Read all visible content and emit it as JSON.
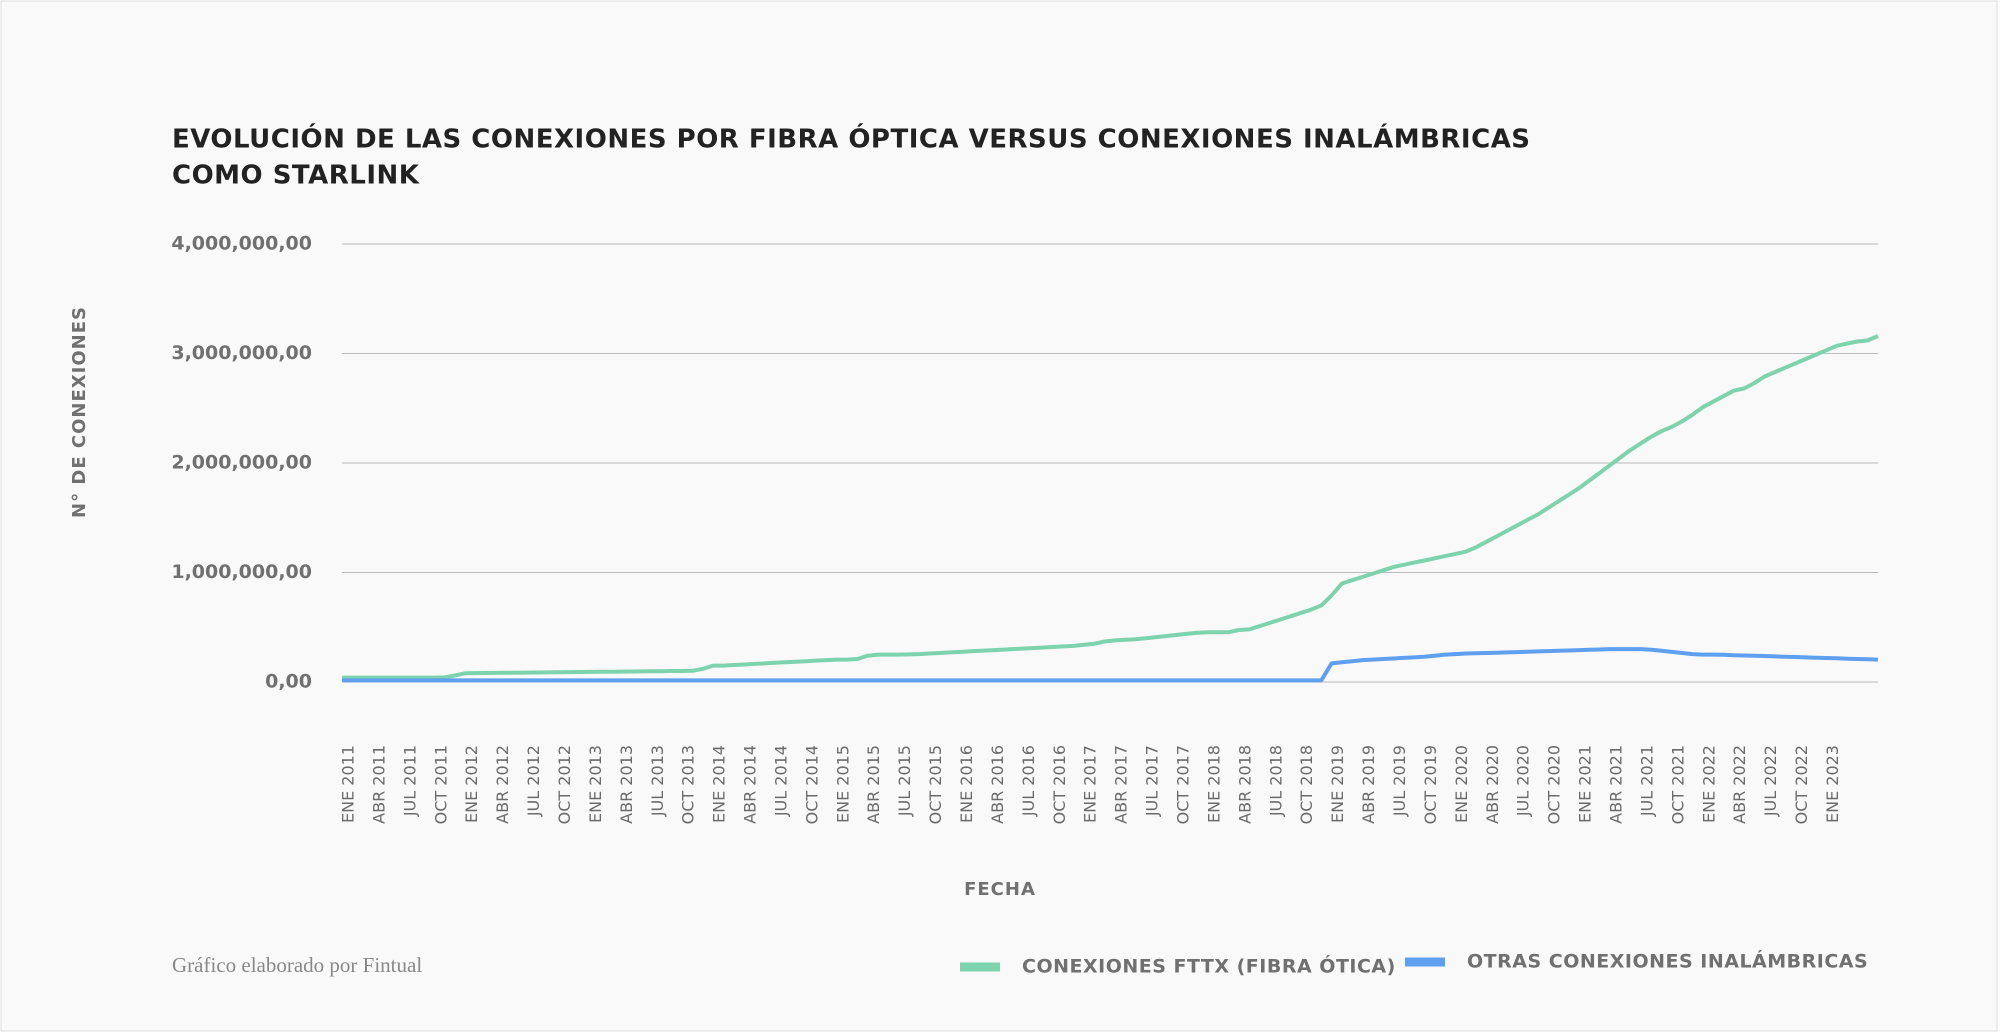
{
  "chart_data": {
    "type": "line",
    "title": [
      "EVOLUCIÓN DE LAS CONEXIONES POR FIBRA ÓPTICA VERSUS CONEXIONES INALÁMBRICAS",
      "COMO STARLINK"
    ],
    "y_label": "N° DE CONEXIONES",
    "x_label": "FECHA",
    "footnote": "Gráfico elaborado por Fintual",
    "legend": "bottom-right",
    "grid": true,
    "ylim": [
      0,
      4000000
    ],
    "yticks": [
      {
        "value": 0,
        "label": "0,00"
      },
      {
        "value": 1000000,
        "label": "1,000,000,00"
      },
      {
        "value": 2000000,
        "label": "2,000,000,00"
      },
      {
        "value": 3000000,
        "label": "3,000,000,00"
      },
      {
        "value": 4000000,
        "label": "4,000,000,00"
      }
    ],
    "categories": [
      "ENE 2011",
      null,
      null,
      "ABR 2011",
      null,
      null,
      "JUL 2011",
      null,
      null,
      "OCT 2011",
      null,
      null,
      "ENE 2012",
      null,
      null,
      "ABR 2012",
      null,
      null,
      "JUL 2012",
      null,
      null,
      "OCT 2012",
      null,
      null,
      "ENE 2013",
      null,
      null,
      "ABR 2013",
      null,
      null,
      "JUL 2013",
      null,
      null,
      "OCT 2013",
      null,
      null,
      "ENE 2014",
      null,
      null,
      "ABR 2014",
      null,
      null,
      "JUL 2014",
      null,
      null,
      "OCT 2014",
      null,
      null,
      "ENE 2015",
      null,
      null,
      "ABR 2015",
      null,
      null,
      "JUL 2015",
      null,
      null,
      "OCT 2015",
      null,
      null,
      "ENE 2016",
      null,
      null,
      "ABR 2016",
      null,
      null,
      "JUL 2016",
      null,
      null,
      "OCT 2016",
      null,
      null,
      "ENE 2017",
      null,
      null,
      "ABR 2017",
      null,
      null,
      "JUL 2017",
      null,
      null,
      "OCT 2017",
      null,
      null,
      "ENE 2018",
      null,
      null,
      "ABR 2018",
      null,
      null,
      "JUL 2018",
      null,
      null,
      "OCT 2018",
      null,
      null,
      "ENE 2019",
      null,
      null,
      "ABR 2019",
      null,
      null,
      "JUL 2019",
      null,
      null,
      "OCT 2019",
      null,
      null,
      "ENE 2020",
      null,
      null,
      "ABR 2020",
      null,
      null,
      "JUL 2020",
      null,
      null,
      "OCT 2020",
      null,
      null,
      "ENE 2021",
      null,
      null,
      "ABR 2021",
      null,
      null,
      "JUL 2021",
      null,
      null,
      "OCT 2021",
      null,
      null,
      "ENE 2022",
      null,
      null,
      "ABR 2022",
      null,
      null,
      "JUL 2022",
      null,
      null,
      "OCT 2022",
      null,
      null,
      "ENE 2023",
      null,
      null,
      null,
      null,
      null
    ],
    "series": [
      {
        "name": "CONEXIONES FTTX (FIBRA ÓTICA)",
        "color": "#7dd3ae",
        "values": [
          40000,
          40000,
          40000,
          40000,
          40000,
          40000,
          40000,
          40000,
          40000,
          40000,
          42000,
          60000,
          80000,
          81000,
          82000,
          83000,
          84000,
          85000,
          86000,
          87000,
          88000,
          89000,
          90000,
          91000,
          92000,
          93000,
          94000,
          95000,
          96000,
          97000,
          98000,
          99000,
          100000,
          100000,
          102000,
          120000,
          150000,
          150000,
          155000,
          160000,
          165000,
          170000,
          175000,
          180000,
          185000,
          190000,
          195000,
          200000,
          205000,
          205000,
          210000,
          240000,
          250000,
          250000,
          250000,
          252000,
          255000,
          260000,
          265000,
          270000,
          275000,
          280000,
          285000,
          290000,
          295000,
          300000,
          305000,
          310000,
          315000,
          320000,
          325000,
          330000,
          340000,
          350000,
          370000,
          380000,
          385000,
          390000,
          400000,
          410000,
          420000,
          430000,
          440000,
          450000,
          455000,
          455000,
          455000,
          475000,
          480000,
          510000,
          540000,
          570000,
          600000,
          630000,
          660000,
          700000,
          790000,
          900000,
          930000,
          960000,
          990000,
          1020000,
          1050000,
          1070000,
          1090000,
          1110000,
          1130000,
          1150000,
          1170000,
          1190000,
          1230000,
          1280000,
          1330000,
          1380000,
          1430000,
          1480000,
          1530000,
          1590000,
          1650000,
          1710000,
          1770000,
          1840000,
          1910000,
          1980000,
          2050000,
          2120000,
          2180000,
          2240000,
          2290000,
          2330000,
          2380000,
          2440000,
          2510000,
          2560000,
          2610000,
          2660000,
          2680000,
          2730000,
          2790000,
          2830000,
          2870000,
          2910000,
          2950000,
          2990000,
          3030000,
          3070000,
          3090000,
          3110000,
          3120000,
          3160000
        ]
      },
      {
        "name": "OTRAS CONEXIONES INALÁMBRICAS",
        "color": "#5e9ff0",
        "values": [
          15000,
          15000,
          15000,
          15000,
          15000,
          15000,
          15000,
          15000,
          15000,
          15000,
          15000,
          15000,
          15000,
          15000,
          15000,
          15000,
          15000,
          15000,
          15000,
          15000,
          15000,
          15000,
          15000,
          15000,
          15000,
          15000,
          15000,
          15000,
          15000,
          15000,
          15000,
          15000,
          15000,
          15000,
          15000,
          15000,
          15000,
          15000,
          15000,
          15000,
          15000,
          15000,
          15000,
          15000,
          15000,
          15000,
          15000,
          15000,
          15000,
          15000,
          15000,
          15000,
          15000,
          15000,
          15000,
          15000,
          15000,
          15000,
          15000,
          15000,
          15000,
          15000,
          15000,
          15000,
          15000,
          15000,
          15000,
          15000,
          15000,
          15000,
          15000,
          15000,
          15000,
          15000,
          15000,
          15000,
          15000,
          15000,
          15000,
          15000,
          15000,
          15000,
          15000,
          15000,
          15000,
          15000,
          15000,
          15000,
          15000,
          15000,
          15000,
          15000,
          15000,
          15000,
          15000,
          15000,
          170000,
          180000,
          190000,
          200000,
          205000,
          210000,
          215000,
          220000,
          225000,
          230000,
          240000,
          250000,
          255000,
          260000,
          262000,
          265000,
          268000,
          270000,
          273000,
          276000,
          279000,
          282000,
          285000,
          288000,
          291000,
          294000,
          297000,
          300000,
          300000,
          300000,
          300000,
          295000,
          285000,
          275000,
          265000,
          255000,
          250000,
          250000,
          248000,
          245000,
          242000,
          240000,
          237000,
          234000,
          231000,
          228000,
          225000,
          222000,
          219000,
          216000,
          213000,
          210000,
          207000,
          205000
        ]
      }
    ]
  }
}
